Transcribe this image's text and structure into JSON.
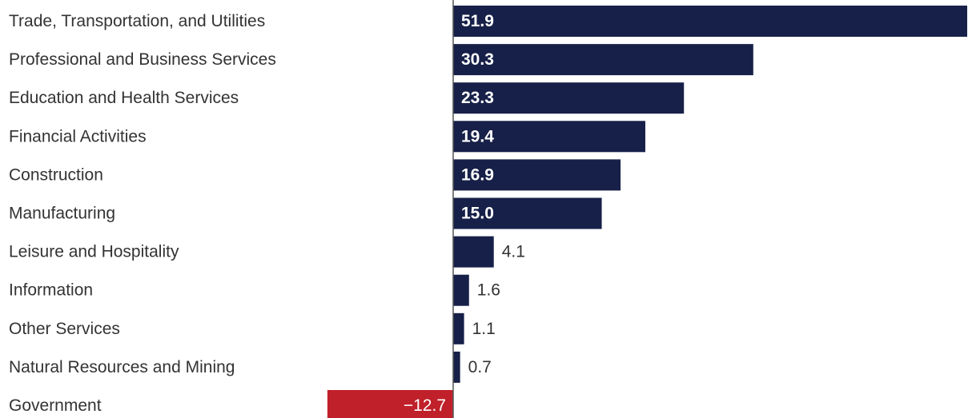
{
  "chart_data": {
    "type": "bar",
    "orientation": "horizontal",
    "categories": [
      "Trade, Transportation, and Utilities",
      "Professional and Business Services",
      "Education and Health Services",
      "Financial Activities",
      "Construction",
      "Manufacturing",
      "Leisure and Hospitality",
      "Information",
      "Other Services",
      "Natural Resources and Mining",
      "Government"
    ],
    "values": [
      51.9,
      30.3,
      23.3,
      19.4,
      16.9,
      15.0,
      4.1,
      1.6,
      1.1,
      0.7,
      -12.7
    ],
    "value_labels": [
      "51.9",
      "30.3",
      "23.3",
      "19.4",
      "16.9",
      "15.0",
      "4.1",
      "1.6",
      "1.1",
      "0.7",
      "−12.7"
    ],
    "xlim": [
      -12.7,
      51.9
    ],
    "grid": false,
    "legend": "none",
    "colors": {
      "positive": "#172048",
      "negative": "#c0202a",
      "axis": "#555555"
    }
  }
}
